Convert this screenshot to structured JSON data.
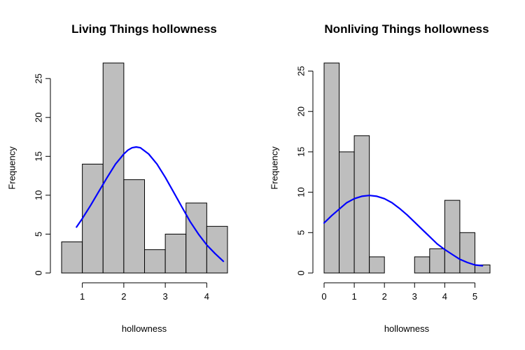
{
  "chart_data": [
    {
      "type": "bar",
      "title": "Living Things hollowness",
      "xlabel": "hollowness",
      "ylabel": "Frequency",
      "bin_edges": [
        0.5,
        1.0,
        1.5,
        2.0,
        2.5,
        3.0,
        3.5,
        4.0,
        4.5
      ],
      "values": [
        4,
        14,
        27,
        12,
        3,
        5,
        9,
        6
      ],
      "xlim": [
        0.5,
        4.5
      ],
      "ylim": [
        0,
        27
      ],
      "x_ticks": [
        1,
        2,
        3,
        4
      ],
      "x_tick_labels": [
        "1",
        "2",
        "3",
        "4"
      ],
      "y_ticks": [
        0,
        5,
        10,
        15,
        20,
        25
      ],
      "y_tick_labels": [
        "0",
        "5",
        "10",
        "15",
        "20",
        "25"
      ],
      "bar_color": "#bebebe",
      "curve": {
        "color": "#0000ff",
        "x": [
          0.86,
          1.0,
          1.2,
          1.4,
          1.6,
          1.8,
          2.0,
          2.1,
          2.2,
          2.3,
          2.4,
          2.6,
          2.8,
          3.0,
          3.2,
          3.4,
          3.6,
          3.8,
          4.0,
          4.2,
          4.4
        ],
        "y": [
          5.9,
          7.0,
          8.7,
          10.5,
          12.3,
          14.0,
          15.3,
          15.8,
          16.1,
          16.2,
          16.1,
          15.3,
          14.0,
          12.3,
          10.4,
          8.5,
          6.6,
          5.0,
          3.6,
          2.5,
          1.5
        ]
      }
    },
    {
      "type": "bar",
      "title": "Nonliving Things hollowness",
      "xlabel": "hollowness",
      "ylabel": "Frequency",
      "bin_edges": [
        0.0,
        0.5,
        1.0,
        1.5,
        2.0,
        2.5,
        3.0,
        3.5,
        4.0,
        4.5,
        5.0,
        5.5
      ],
      "values": [
        26,
        15,
        17,
        2,
        0,
        0,
        2,
        3,
        9,
        5,
        1
      ],
      "xlim": [
        0.0,
        5.5
      ],
      "ylim": [
        0,
        26
      ],
      "x_ticks": [
        0,
        1,
        2,
        3,
        4,
        5
      ],
      "x_tick_labels": [
        "0",
        "1",
        "2",
        "3",
        "4",
        "5"
      ],
      "y_ticks": [
        0,
        5,
        10,
        15,
        20,
        25
      ],
      "y_tick_labels": [
        "0",
        "5",
        "10",
        "15",
        "20",
        "25"
      ],
      "bar_color": "#bebebe",
      "curve": {
        "color": "#0000ff",
        "x": [
          0.0,
          0.25,
          0.5,
          0.75,
          1.0,
          1.25,
          1.5,
          1.75,
          2.0,
          2.25,
          2.5,
          2.75,
          3.0,
          3.25,
          3.5,
          3.75,
          4.0,
          4.25,
          4.5,
          4.75,
          5.0,
          5.25
        ],
        "y": [
          6.2,
          7.1,
          7.9,
          8.7,
          9.2,
          9.5,
          9.6,
          9.5,
          9.2,
          8.7,
          8.0,
          7.2,
          6.3,
          5.4,
          4.5,
          3.6,
          2.9,
          2.3,
          1.7,
          1.3,
          1.0,
          0.9
        ]
      }
    }
  ]
}
